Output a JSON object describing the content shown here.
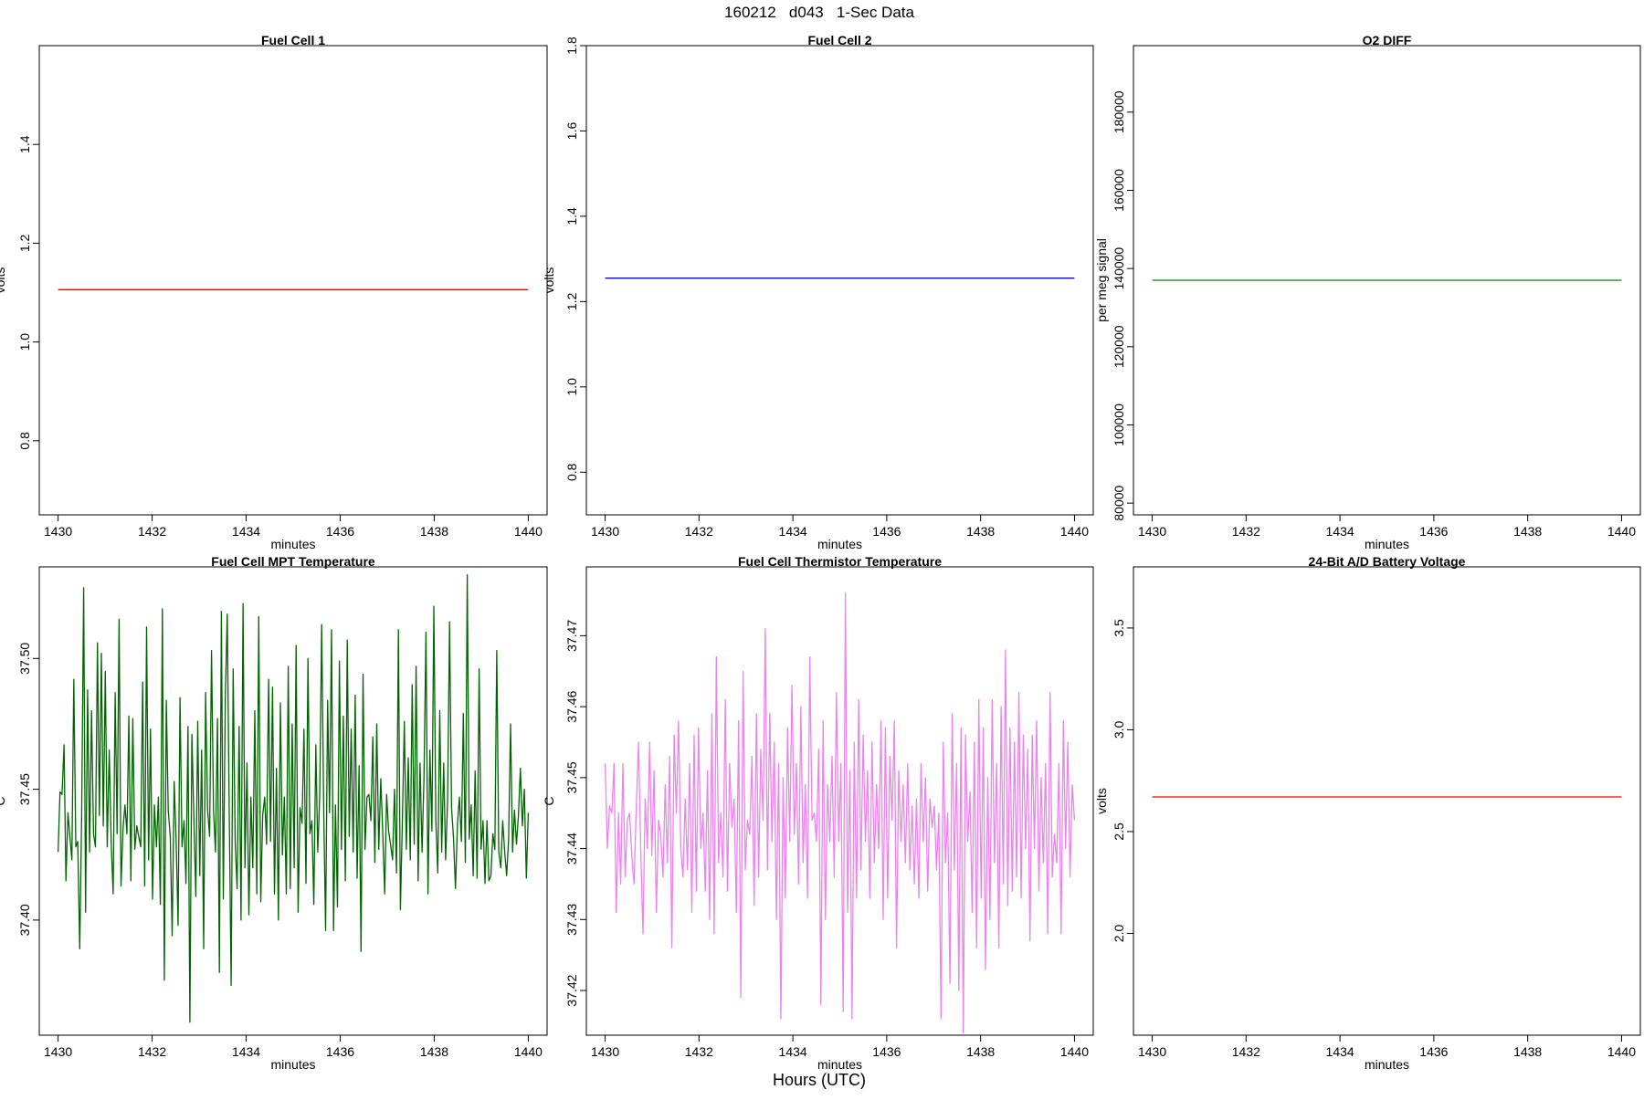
{
  "page": {
    "title": "160212   d043   1-Sec Data",
    "bottom_label": "Hours (UTC)"
  },
  "chart_data": [
    {
      "type": "line",
      "title": "Fuel Cell 1",
      "xlabel": "minutes",
      "ylabel": "volts",
      "xlim": [
        1429.6,
        1440.4
      ],
      "ylim": [
        0.65,
        1.6
      ],
      "xticks": [
        1430,
        1432,
        1434,
        1436,
        1438,
        1440
      ],
      "xtick_labels": [
        "1430",
        "1432",
        "1434",
        "1436",
        "1438",
        "1440"
      ],
      "yticks": [
        0.8,
        1.0,
        1.2,
        1.4
      ],
      "ytick_labels": [
        "0.8",
        "1.0",
        "1.2",
        "1.4"
      ],
      "color": "#ff0000",
      "series": [
        {
          "x": [
            1430,
            1440
          ],
          "y": [
            1.106,
            1.106
          ]
        }
      ]
    },
    {
      "type": "line",
      "title": "Fuel Cell 2",
      "xlabel": "minutes",
      "ylabel": "volts",
      "xlim": [
        1429.6,
        1440.4
      ],
      "ylim": [
        0.7,
        1.8
      ],
      "xticks": [
        1430,
        1432,
        1434,
        1436,
        1438,
        1440
      ],
      "xtick_labels": [
        "1430",
        "1432",
        "1434",
        "1436",
        "1438",
        "1440"
      ],
      "yticks": [
        0.8,
        1.0,
        1.2,
        1.4,
        1.6,
        1.8
      ],
      "ytick_labels": [
        "0.8",
        "1.0",
        "1.2",
        "1.4",
        "1.6",
        "1.8"
      ],
      "color": "#0000ff",
      "series": [
        {
          "x": [
            1430,
            1440
          ],
          "y": [
            1.255,
            1.255
          ]
        }
      ]
    },
    {
      "type": "line",
      "title": "O2 DIFF",
      "xlabel": "minutes",
      "ylabel": "per meg signal",
      "xlim": [
        1429.6,
        1440.4
      ],
      "ylim": [
        77000,
        197000
      ],
      "xticks": [
        1430,
        1432,
        1434,
        1436,
        1438,
        1440
      ],
      "xtick_labels": [
        "1430",
        "1432",
        "1434",
        "1436",
        "1438",
        "1440"
      ],
      "yticks": [
        80000,
        100000,
        120000,
        140000,
        160000,
        180000
      ],
      "ytick_labels": [
        "80000",
        "100000",
        "120000",
        "140000",
        "160000",
        "180000"
      ],
      "color": "#008800",
      "series": [
        {
          "x": [
            1430,
            1440
          ],
          "y": [
            137000,
            137000
          ]
        }
      ]
    },
    {
      "type": "line",
      "title": "Fuel Cell MPT Temperature",
      "xlabel": "minutes",
      "ylabel": "C",
      "xlim": [
        1429.6,
        1440.4
      ],
      "ylim": [
        37.356,
        37.535
      ],
      "xticks": [
        1430,
        1432,
        1434,
        1436,
        1438,
        1440
      ],
      "xtick_labels": [
        "1430",
        "1432",
        "1434",
        "1436",
        "1438",
        "1440"
      ],
      "yticks": [
        37.4,
        37.45,
        37.5
      ],
      "ytick_labels": [
        "37.40",
        "37.45",
        "37.50"
      ],
      "color": "#006400",
      "series": [
        {
          "x_start": 1430,
          "x_end": 1440,
          "y": [
            37.426,
            37.449,
            37.448,
            37.467,
            37.415,
            37.441,
            37.432,
            37.423,
            37.492,
            37.428,
            37.43,
            37.389,
            37.44,
            37.527,
            37.403,
            37.488,
            37.426,
            37.48,
            37.433,
            37.428,
            37.506,
            37.44,
            37.502,
            37.436,
            37.495,
            37.428,
            37.465,
            37.429,
            37.41,
            37.487,
            37.433,
            37.515,
            37.413,
            37.435,
            37.444,
            37.433,
            37.478,
            37.415,
            37.477,
            37.427,
            37.436,
            37.432,
            37.428,
            37.491,
            37.413,
            37.512,
            37.423,
            37.473,
            37.408,
            37.444,
            37.428,
            37.447,
            37.406,
            37.519,
            37.377,
            37.484,
            37.442,
            37.432,
            37.394,
            37.453,
            37.431,
            37.398,
            37.485,
            37.428,
            37.438,
            37.414,
            37.474,
            37.361,
            37.471,
            37.44,
            37.409,
            37.476,
            37.417,
            37.465,
            37.389,
            37.487,
            37.442,
            37.432,
            37.503,
            37.442,
            37.426,
            37.477,
            37.38,
            37.518,
            37.408,
            37.485,
            37.517,
            37.441,
            37.375,
            37.496,
            37.43,
            37.412,
            37.474,
            37.4,
            37.521,
            37.42,
            37.46,
            37.402,
            37.447,
            37.42,
            37.48,
            37.41,
            37.516,
            37.407,
            37.44,
            37.447,
            37.429,
            37.492,
            37.43,
            37.489,
            37.41,
            37.458,
            37.4,
            37.483,
            37.425,
            37.447,
            37.41,
            37.497,
            37.412,
            37.475,
            37.42,
            37.505,
            37.403,
            37.443,
            37.437,
            37.473,
            37.414,
            37.5,
            37.433,
            37.438,
            37.406,
            37.467,
            37.426,
            37.448,
            37.513,
            37.443,
            37.396,
            37.484,
            37.441,
            37.511,
            37.396,
            37.444,
            37.405,
            37.499,
            37.427,
            37.478,
            37.415,
            37.507,
            37.432,
            37.473,
            37.426,
            37.486,
            37.416,
            37.459,
            37.388,
            37.494,
            37.427,
            37.447,
            37.448,
            37.438,
            37.47,
            37.422,
            37.475,
            37.427,
            37.454,
            37.434,
            37.41,
            37.448,
            37.434,
            37.429,
            37.423,
            37.45,
            37.418,
            37.511,
            37.404,
            37.437,
            37.476,
            37.427,
            37.462,
            37.423,
            37.49,
            37.429,
            37.497,
            37.415,
            37.46,
            37.426,
            37.454,
            37.51,
            37.41,
            37.465,
            37.434,
            37.52,
            37.438,
            37.418,
            37.48,
            37.426,
            37.46,
            37.423,
            37.446,
            37.514,
            37.443,
            37.431,
            37.412,
            37.437,
            37.447,
            37.43,
            37.479,
            37.422,
            37.532,
            37.431,
            37.444,
            37.417,
            37.457,
            37.416,
            37.496,
            37.427,
            37.438,
            37.414,
            37.438,
            37.415,
            37.417,
            37.433,
            37.427,
            37.503,
            37.426,
            37.42,
            37.438,
            37.426,
            37.417,
            37.431,
            37.475,
            37.426,
            37.442,
            37.429,
            37.44,
            37.458,
            37.436,
            37.45,
            37.416,
            37.441
          ]
        }
      ]
    },
    {
      "type": "line",
      "title": "Fuel Cell Thermistor Temperature",
      "xlabel": "minutes",
      "ylabel": "C",
      "xlim": [
        1429.6,
        1440.4
      ],
      "ylim": [
        37.4137,
        37.4797
      ],
      "xticks": [
        1430,
        1432,
        1434,
        1436,
        1438,
        1440
      ],
      "xtick_labels": [
        "1430",
        "1432",
        "1434",
        "1436",
        "1438",
        "1440"
      ],
      "yticks": [
        37.42,
        37.43,
        37.44,
        37.45,
        37.46,
        37.47
      ],
      "ytick_labels": [
        "37.42",
        "37.43",
        "37.44",
        "37.45",
        "37.46",
        "37.47"
      ],
      "color": "#ee82ee",
      "series": [
        {
          "x_start": 1430,
          "x_end": 1440,
          "y": [
            37.452,
            37.44,
            37.446,
            37.445,
            37.452,
            37.431,
            37.445,
            37.435,
            37.452,
            37.436,
            37.444,
            37.445,
            37.439,
            37.435,
            37.446,
            37.455,
            37.44,
            37.428,
            37.447,
            37.44,
            37.455,
            37.439,
            37.451,
            37.431,
            37.444,
            37.442,
            37.436,
            37.449,
            37.438,
            37.453,
            37.426,
            37.456,
            37.445,
            37.458,
            37.44,
            37.436,
            37.447,
            37.437,
            37.452,
            37.431,
            37.456,
            37.434,
            37.457,
            37.44,
            37.445,
            37.434,
            37.451,
            37.43,
            37.459,
            37.428,
            37.467,
            37.438,
            37.445,
            37.436,
            37.461,
            37.434,
            37.452,
            37.443,
            37.447,
            37.431,
            37.458,
            37.419,
            37.465,
            37.437,
            37.444,
            37.442,
            37.453,
            37.432,
            37.459,
            37.436,
            37.454,
            37.444,
            37.471,
            37.437,
            37.459,
            37.441,
            37.455,
            37.43,
            37.452,
            37.416,
            37.45,
            37.433,
            37.457,
            37.441,
            37.463,
            37.442,
            37.452,
            37.435,
            37.46,
            37.438,
            37.449,
            37.433,
            37.467,
            37.444,
            37.445,
            37.441,
            37.454,
            37.418,
            37.458,
            37.43,
            37.449,
            37.441,
            37.453,
            37.436,
            37.462,
            37.441,
            37.452,
            37.417,
            37.476,
            37.431,
            37.451,
            37.416,
            37.455,
            37.433,
            37.461,
            37.437,
            37.456,
            37.441,
            37.451,
            37.433,
            37.455,
            37.438,
            37.449,
            37.44,
            37.458,
            37.43,
            37.457,
            37.433,
            37.453,
            37.444,
            37.458,
            37.426,
            37.451,
            37.441,
            37.449,
            37.438,
            37.452,
            37.437,
            37.446,
            37.435,
            37.447,
            37.433,
            37.452,
            37.441,
            37.45,
            37.434,
            37.447,
            37.443,
            37.446,
            37.437,
            37.445,
            37.416,
            37.455,
            37.438,
            37.445,
            37.421,
            37.459,
            37.437,
            37.452,
            37.42,
            37.457,
            37.414,
            37.456,
            37.441,
            37.448,
            37.431,
            37.455,
            37.426,
            37.461,
            37.433,
            37.457,
            37.423,
            37.45,
            37.43,
            37.461,
            37.438,
            37.452,
            37.426,
            37.46,
            37.435,
            37.468,
            37.432,
            37.457,
            37.434,
            37.455,
            37.436,
            37.462,
            37.433,
            37.456,
            37.44,
            37.454,
            37.427,
            37.456,
            37.44,
            37.458,
            37.434,
            37.45,
            37.438,
            37.452,
            37.428,
            37.462,
            37.436,
            37.442,
            37.438,
            37.452,
            37.428,
            37.458,
            37.44,
            37.455,
            37.436,
            37.449,
            37.444
          ]
        }
      ]
    },
    {
      "type": "line",
      "title": "24-Bit A/D Battery Voltage",
      "xlabel": "minutes",
      "ylabel": "volts",
      "xlim": [
        1429.6,
        1440.4
      ],
      "ylim": [
        1.5,
        3.8
      ],
      "xticks": [
        1430,
        1432,
        1434,
        1436,
        1438,
        1440
      ],
      "xtick_labels": [
        "1430",
        "1432",
        "1434",
        "1436",
        "1438",
        "1440"
      ],
      "yticks": [
        2.0,
        2.5,
        3.0,
        3.5
      ],
      "ytick_labels": [
        "2.0",
        "2.5",
        "3.0",
        "3.5"
      ],
      "color": "#ff0000",
      "series": [
        {
          "x": [
            1430,
            1440
          ],
          "y": [
            2.67,
            2.67
          ]
        }
      ]
    }
  ]
}
